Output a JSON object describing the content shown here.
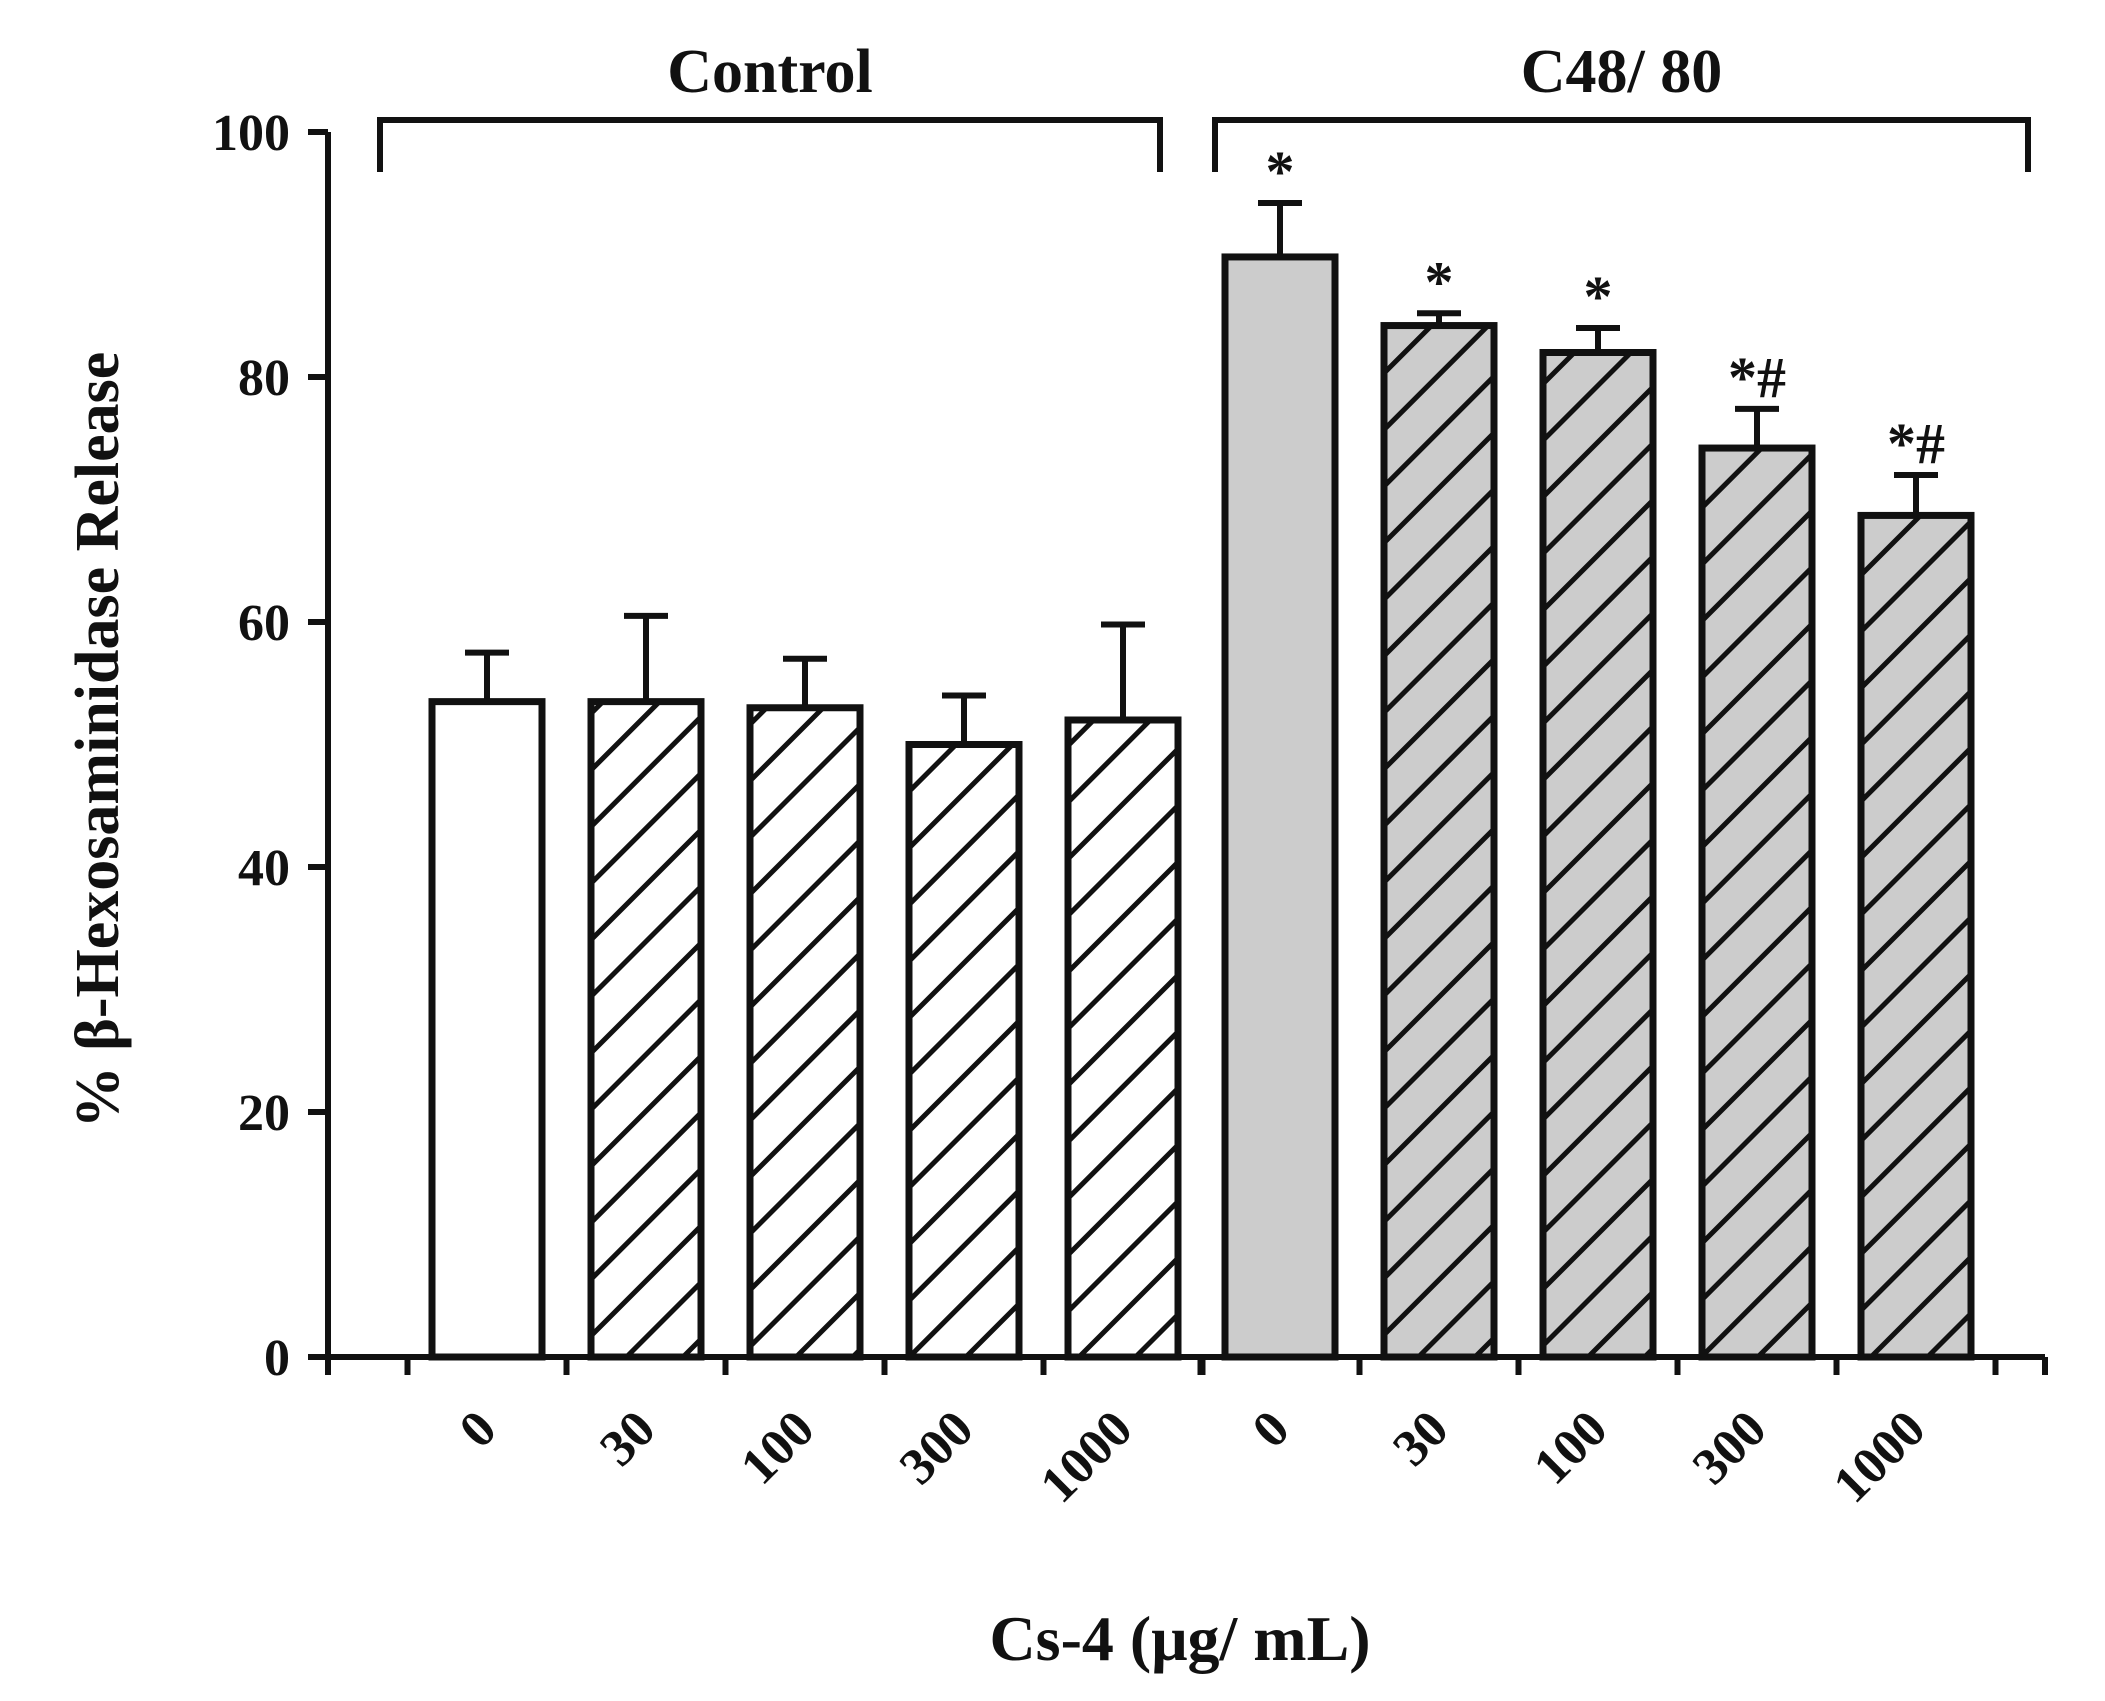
{
  "chart_data": {
    "type": "bar",
    "ylabel": "% β-Hexosaminidase  Release",
    "xlabel": "Cs-4 (μg/ mL)",
    "ylim": [
      0,
      100
    ],
    "yticks": [
      0,
      20,
      40,
      60,
      80,
      100
    ],
    "groups": [
      {
        "name": "Control",
        "bars": [
          {
            "label": "0",
            "value": 53.5,
            "error": 4.0,
            "pattern": "solid",
            "fill": "#ffffff",
            "annotation": ""
          },
          {
            "label": "30",
            "value": 53.5,
            "error": 7.0,
            "pattern": "hatched",
            "fill": "#ffffff",
            "annotation": ""
          },
          {
            "label": "100",
            "value": 53.0,
            "error": 4.0,
            "pattern": "hatched",
            "fill": "#ffffff",
            "annotation": ""
          },
          {
            "label": "300",
            "value": 50.0,
            "error": 4.0,
            "pattern": "hatched",
            "fill": "#ffffff",
            "annotation": ""
          },
          {
            "label": "1000",
            "value": 52.0,
            "error": 7.8,
            "pattern": "hatched",
            "fill": "#ffffff",
            "annotation": ""
          }
        ]
      },
      {
        "name": "C48/ 80",
        "bars": [
          {
            "label": "0",
            "value": 89.8,
            "error": 4.4,
            "pattern": "solid",
            "fill": "#cccccc",
            "annotation": "*"
          },
          {
            "label": "30",
            "value": 84.2,
            "error": 1.0,
            "pattern": "hatched",
            "fill": "#cccccc",
            "annotation": "*"
          },
          {
            "label": "100",
            "value": 82.0,
            "error": 2.0,
            "pattern": "hatched",
            "fill": "#cccccc",
            "annotation": "*"
          },
          {
            "label": "300",
            "value": 74.2,
            "error": 3.2,
            "pattern": "hatched",
            "fill": "#cccccc",
            "annotation": "*#"
          },
          {
            "label": "1000",
            "value": 68.7,
            "error": 3.3,
            "pattern": "hatched",
            "fill": "#cccccc",
            "annotation": "*#"
          }
        ]
      }
    ]
  }
}
